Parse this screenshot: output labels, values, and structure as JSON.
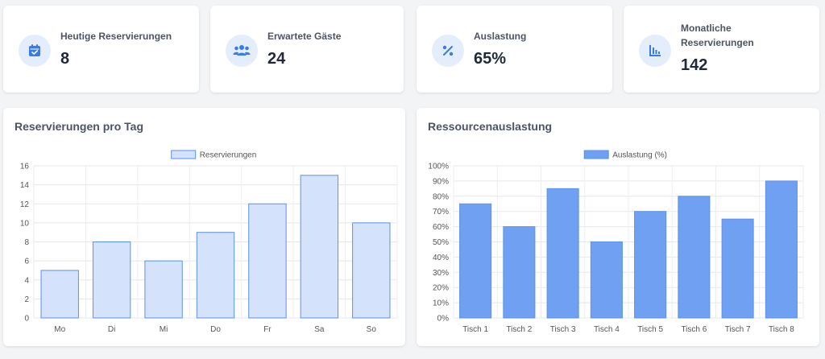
{
  "stats": [
    {
      "label": "Heutige Reservierungen",
      "value": "8",
      "icon": "calendar-check-icon"
    },
    {
      "label": "Erwartete Gäste",
      "value": "24",
      "icon": "users-icon"
    },
    {
      "label": "Auslastung",
      "value": "65%",
      "icon": "percent-icon"
    },
    {
      "label": "Monatliche Reservierungen",
      "value": "142",
      "icon": "bar-chart-icon"
    }
  ],
  "charts": {
    "left_title": "Reservierungen pro Tag",
    "right_title": "Ressourcenauslastung"
  },
  "chart_data": [
    {
      "type": "bar",
      "title": "Reservierungen pro Tag",
      "categories": [
        "Mo",
        "Di",
        "Mi",
        "Do",
        "Fr",
        "Sa",
        "So"
      ],
      "series": [
        {
          "name": "Reservierungen",
          "values": [
            5,
            8,
            6,
            9,
            12,
            15,
            10
          ]
        }
      ],
      "ylim": [
        0,
        16
      ],
      "yticks": [
        "0",
        "2",
        "4",
        "6",
        "8",
        "10",
        "12",
        "14",
        "16"
      ],
      "legend": "top",
      "grid": true,
      "fill": "#d5e2fb",
      "stroke": "#5b92ec"
    },
    {
      "type": "bar",
      "title": "Ressourcenauslastung",
      "categories": [
        "Tisch 1",
        "Tisch 2",
        "Tisch 3",
        "Tisch 4",
        "Tisch 5",
        "Tisch 6",
        "Tisch 7",
        "Tisch 8"
      ],
      "series": [
        {
          "name": "Auslastung (%)",
          "values": [
            75,
            60,
            85,
            50,
            70,
            80,
            65,
            90
          ]
        }
      ],
      "ylim": [
        0,
        100
      ],
      "yticks": [
        "0%",
        "10%",
        "20%",
        "30%",
        "40%",
        "50%",
        "60%",
        "70%",
        "80%",
        "90%",
        "100%"
      ],
      "legend": "top",
      "grid": true,
      "fill": "#6fa0f2",
      "stroke": "#5b92ec"
    }
  ]
}
